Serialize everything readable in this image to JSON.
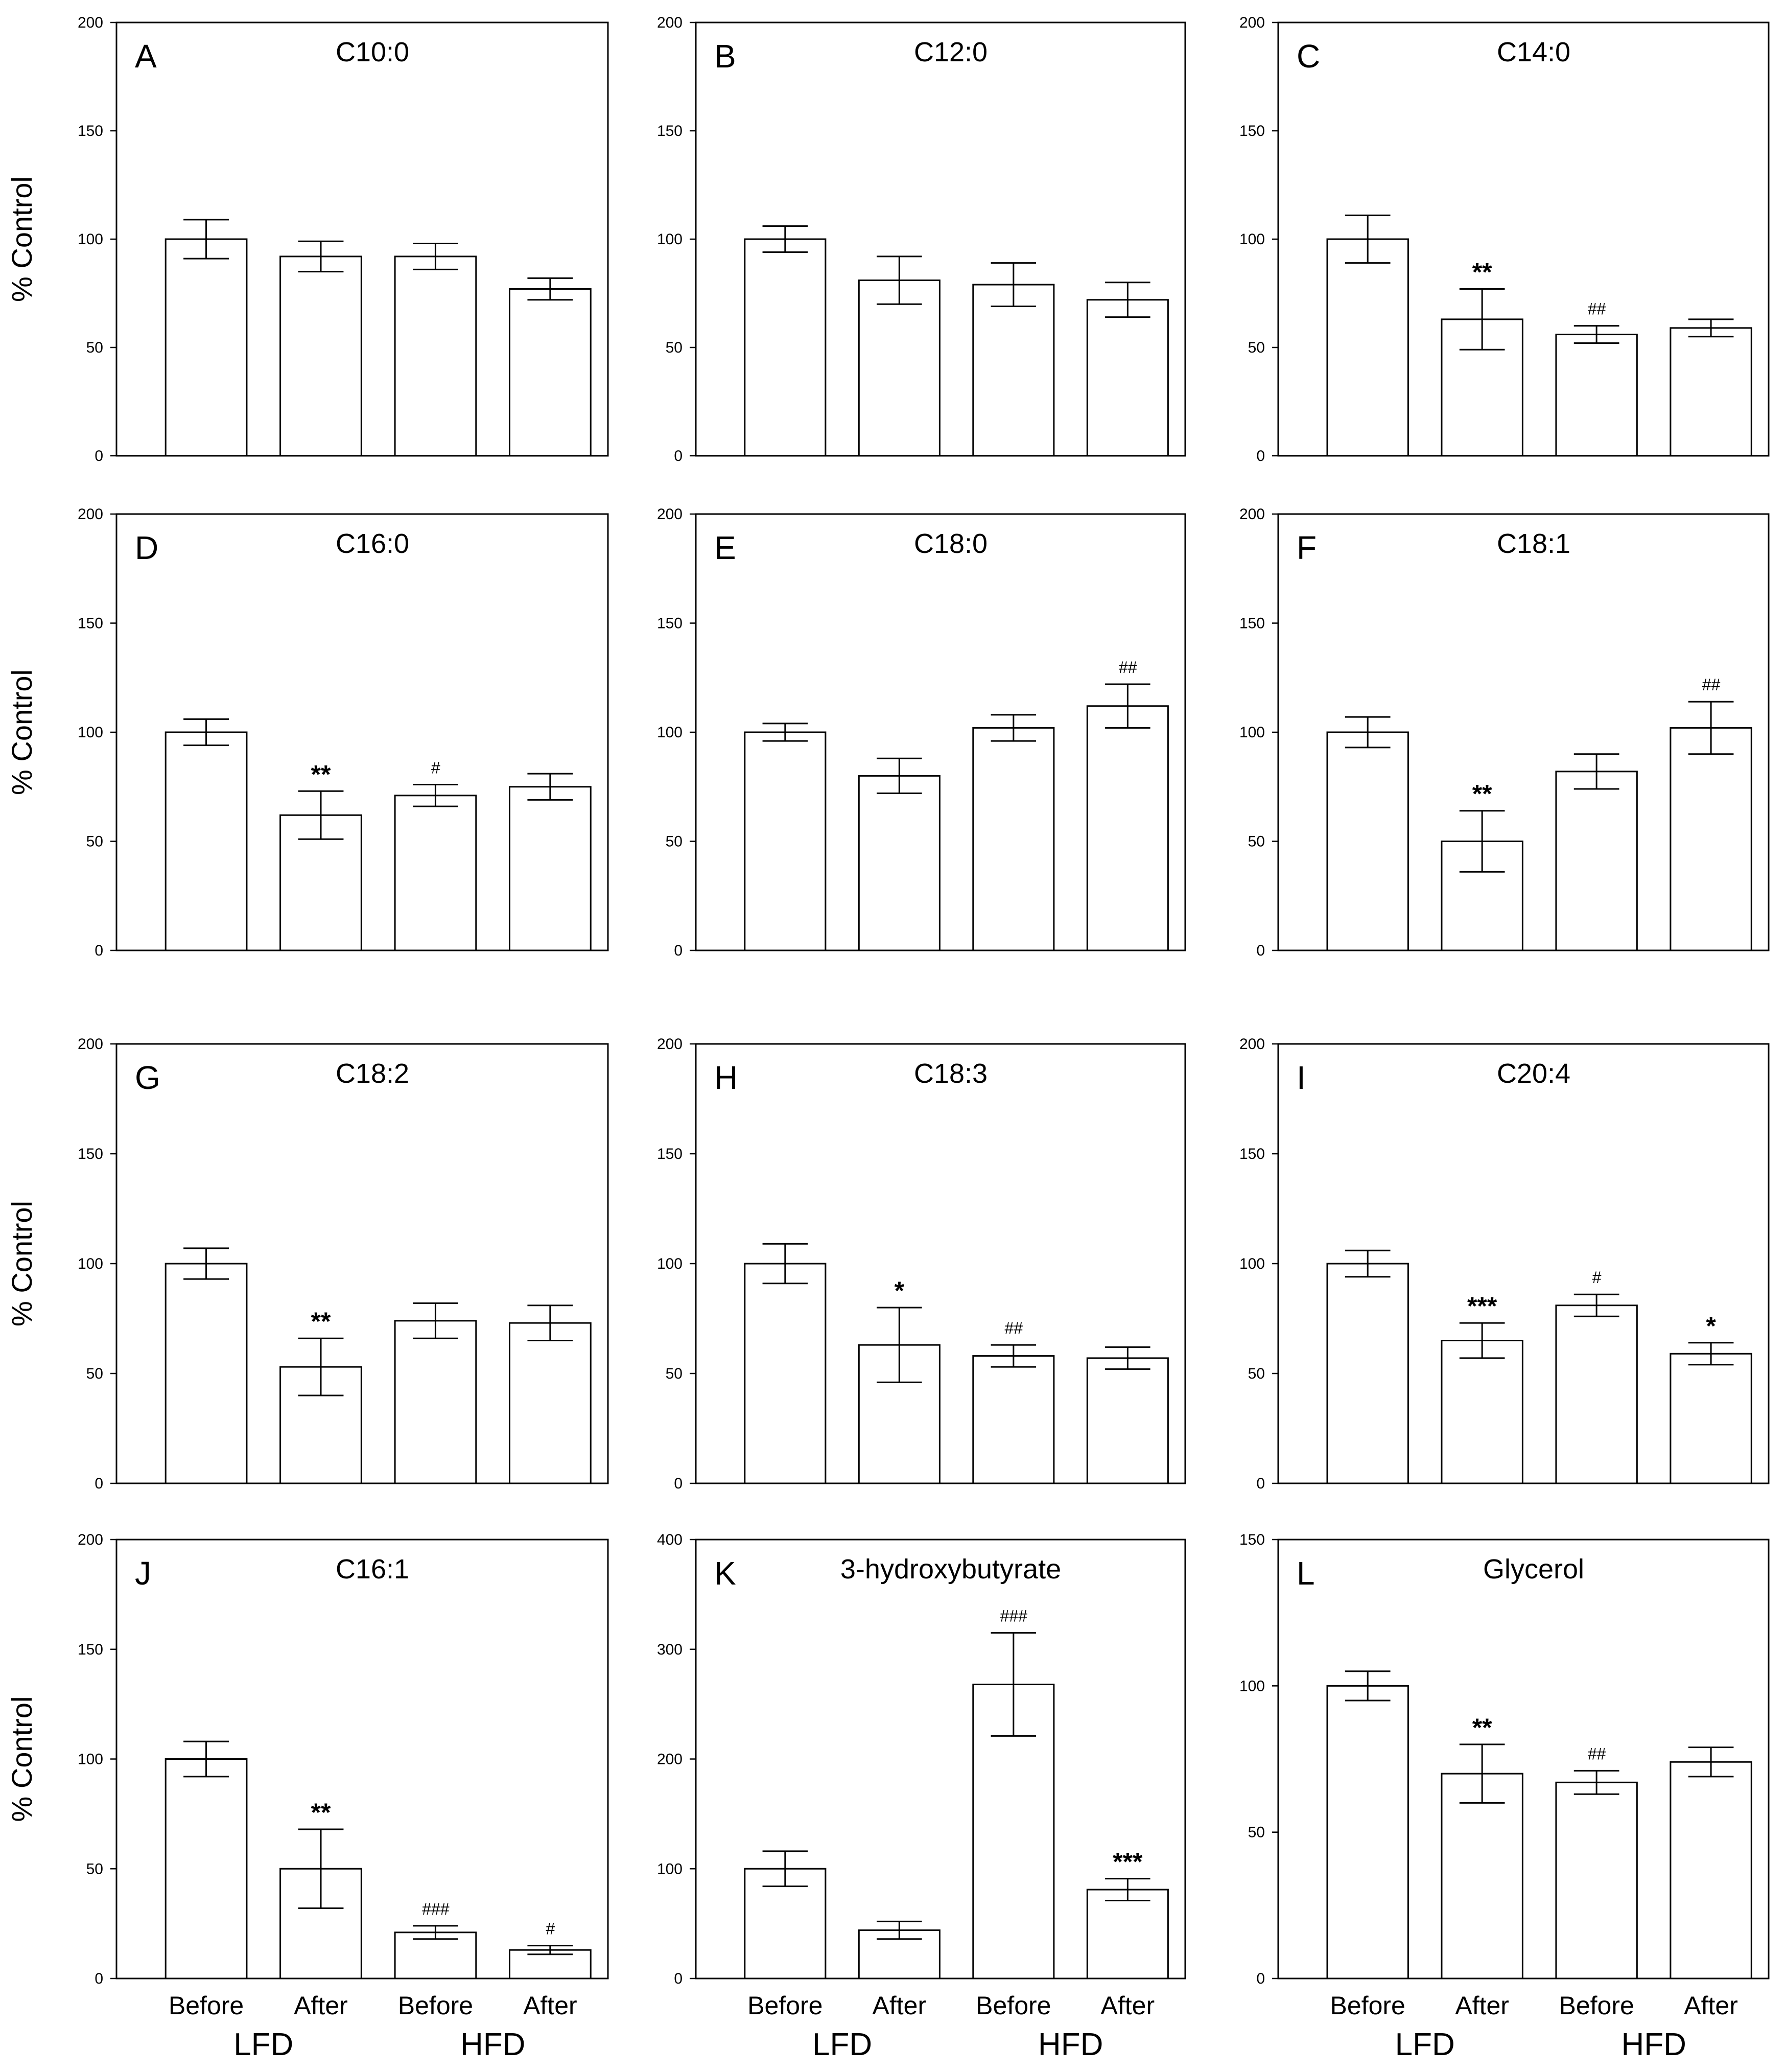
{
  "y_axis_label": "% Control",
  "x_categories": [
    "Before",
    "After",
    "Before",
    "After"
  ],
  "group_labels": [
    "LFD",
    "HFD"
  ],
  "chart_data": [
    {
      "type": "bar",
      "letter": "A",
      "title": "C10:0",
      "categories": [
        "Before",
        "After",
        "Before",
        "After"
      ],
      "values": [
        100,
        92,
        92,
        77
      ],
      "errors": [
        9,
        7,
        6,
        5
      ],
      "ylim": [
        0,
        200
      ],
      "yticks": [
        0,
        50,
        100,
        150,
        200
      ],
      "annotations": [
        "",
        "",
        "",
        ""
      ]
    },
    {
      "type": "bar",
      "letter": "B",
      "title": "C12:0",
      "categories": [
        "Before",
        "After",
        "Before",
        "After"
      ],
      "values": [
        100,
        81,
        79,
        72
      ],
      "errors": [
        6,
        11,
        10,
        8
      ],
      "ylim": [
        0,
        200
      ],
      "yticks": [
        0,
        50,
        100,
        150,
        200
      ],
      "annotations": [
        "",
        "",
        "",
        ""
      ]
    },
    {
      "type": "bar",
      "letter": "C",
      "title": "C14:0",
      "categories": [
        "Before",
        "After",
        "Before",
        "After"
      ],
      "values": [
        100,
        63,
        56,
        59
      ],
      "errors": [
        11,
        14,
        4,
        4
      ],
      "ylim": [
        0,
        200
      ],
      "yticks": [
        0,
        50,
        100,
        150,
        200
      ],
      "annotations": [
        "",
        "**",
        "##",
        ""
      ]
    },
    {
      "type": "bar",
      "letter": "D",
      "title": "C16:0",
      "categories": [
        "Before",
        "After",
        "Before",
        "After"
      ],
      "values": [
        100,
        62,
        71,
        75
      ],
      "errors": [
        6,
        11,
        5,
        6
      ],
      "ylim": [
        0,
        200
      ],
      "yticks": [
        0,
        50,
        100,
        150,
        200
      ],
      "annotations": [
        "",
        "**",
        "#",
        ""
      ]
    },
    {
      "type": "bar",
      "letter": "E",
      "title": "C18:0",
      "categories": [
        "Before",
        "After",
        "Before",
        "After"
      ],
      "values": [
        100,
        80,
        102,
        112
      ],
      "errors": [
        4,
        8,
        6,
        10
      ],
      "ylim": [
        0,
        200
      ],
      "yticks": [
        0,
        50,
        100,
        150,
        200
      ],
      "annotations": [
        "",
        "",
        "",
        "##"
      ]
    },
    {
      "type": "bar",
      "letter": "F",
      "title": "C18:1",
      "categories": [
        "Before",
        "After",
        "Before",
        "After"
      ],
      "values": [
        100,
        50,
        82,
        102
      ],
      "errors": [
        7,
        14,
        8,
        12
      ],
      "ylim": [
        0,
        200
      ],
      "yticks": [
        0,
        50,
        100,
        150,
        200
      ],
      "annotations": [
        "",
        "**",
        "",
        "##"
      ]
    },
    {
      "type": "bar",
      "letter": "G",
      "title": "C18:2",
      "categories": [
        "Before",
        "After",
        "Before",
        "After"
      ],
      "values": [
        100,
        53,
        74,
        73
      ],
      "errors": [
        7,
        13,
        8,
        8
      ],
      "ylim": [
        0,
        200
      ],
      "yticks": [
        0,
        50,
        100,
        150,
        200
      ],
      "annotations": [
        "",
        "**",
        "",
        ""
      ]
    },
    {
      "type": "bar",
      "letter": "H",
      "title": "C18:3",
      "categories": [
        "Before",
        "After",
        "Before",
        "After"
      ],
      "values": [
        100,
        63,
        58,
        57
      ],
      "errors": [
        9,
        17,
        5,
        5
      ],
      "ylim": [
        0,
        200
      ],
      "yticks": [
        0,
        50,
        100,
        150,
        200
      ],
      "annotations": [
        "",
        "*",
        "##",
        ""
      ]
    },
    {
      "type": "bar",
      "letter": "I",
      "title": "C20:4",
      "categories": [
        "Before",
        "After",
        "Before",
        "After"
      ],
      "values": [
        100,
        65,
        81,
        59
      ],
      "errors": [
        6,
        8,
        5,
        5
      ],
      "ylim": [
        0,
        200
      ],
      "yticks": [
        0,
        50,
        100,
        150,
        200
      ],
      "annotations": [
        "",
        "***",
        "#",
        "*"
      ]
    },
    {
      "type": "bar",
      "letter": "J",
      "title": "C16:1",
      "categories": [
        "Before",
        "After",
        "Before",
        "After"
      ],
      "values": [
        100,
        50,
        21,
        13
      ],
      "errors": [
        8,
        18,
        3,
        2
      ],
      "ylim": [
        0,
        200
      ],
      "yticks": [
        0,
        50,
        100,
        150,
        200
      ],
      "annotations": [
        "",
        "**",
        "###",
        "#"
      ]
    },
    {
      "type": "bar",
      "letter": "K",
      "title": "3-hydroxybutyrate",
      "categories": [
        "Before",
        "After",
        "Before",
        "After"
      ],
      "values": [
        100,
        44,
        268,
        81
      ],
      "errors": [
        16,
        8,
        47,
        10
      ],
      "ylim": [
        0,
        400
      ],
      "yticks": [
        0,
        100,
        200,
        300,
        400
      ],
      "annotations": [
        "",
        "",
        "###",
        "***"
      ]
    },
    {
      "type": "bar",
      "letter": "L",
      "title": "Glycerol",
      "categories": [
        "Before",
        "After",
        "Before",
        "After"
      ],
      "values": [
        100,
        70,
        67,
        74
      ],
      "errors": [
        5,
        10,
        4,
        5
      ],
      "ylim": [
        0,
        150
      ],
      "yticks": [
        0,
        50,
        100,
        150
      ],
      "annotations": [
        "",
        "**",
        "##",
        ""
      ]
    }
  ]
}
